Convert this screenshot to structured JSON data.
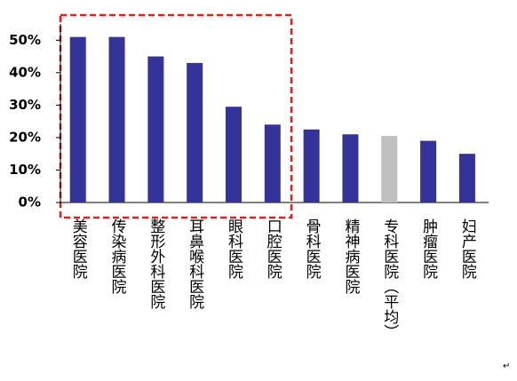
{
  "chart_data": {
    "type": "bar",
    "categories": [
      "美容医院",
      "传染病医院",
      "整形外科医院",
      "耳鼻喉科医院",
      "眼科医院",
      "口腔医院",
      "骨科医院",
      "精神病医院",
      "专科医院（平均）",
      "肿瘤医院",
      "妇产医院"
    ],
    "values": [
      51,
      51,
      45,
      43,
      29.5,
      24,
      22.5,
      21,
      20.5,
      19,
      15
    ],
    "colors": [
      "#333399",
      "#333399",
      "#333399",
      "#333399",
      "#333399",
      "#333399",
      "#333399",
      "#333399",
      "#c0c0c0",
      "#333399",
      "#333399"
    ],
    "ylim": [
      0,
      55
    ],
    "yticks": [
      {
        "value": 0,
        "label": "0%"
      },
      {
        "value": 10,
        "label": "10%"
      },
      {
        "value": 20,
        "label": "20%"
      },
      {
        "value": 30,
        "label": "30%"
      },
      {
        "value": 40,
        "label": "40%"
      },
      {
        "value": 50,
        "label": "50%"
      }
    ],
    "grid": false,
    "footer_mark": "↵"
  }
}
